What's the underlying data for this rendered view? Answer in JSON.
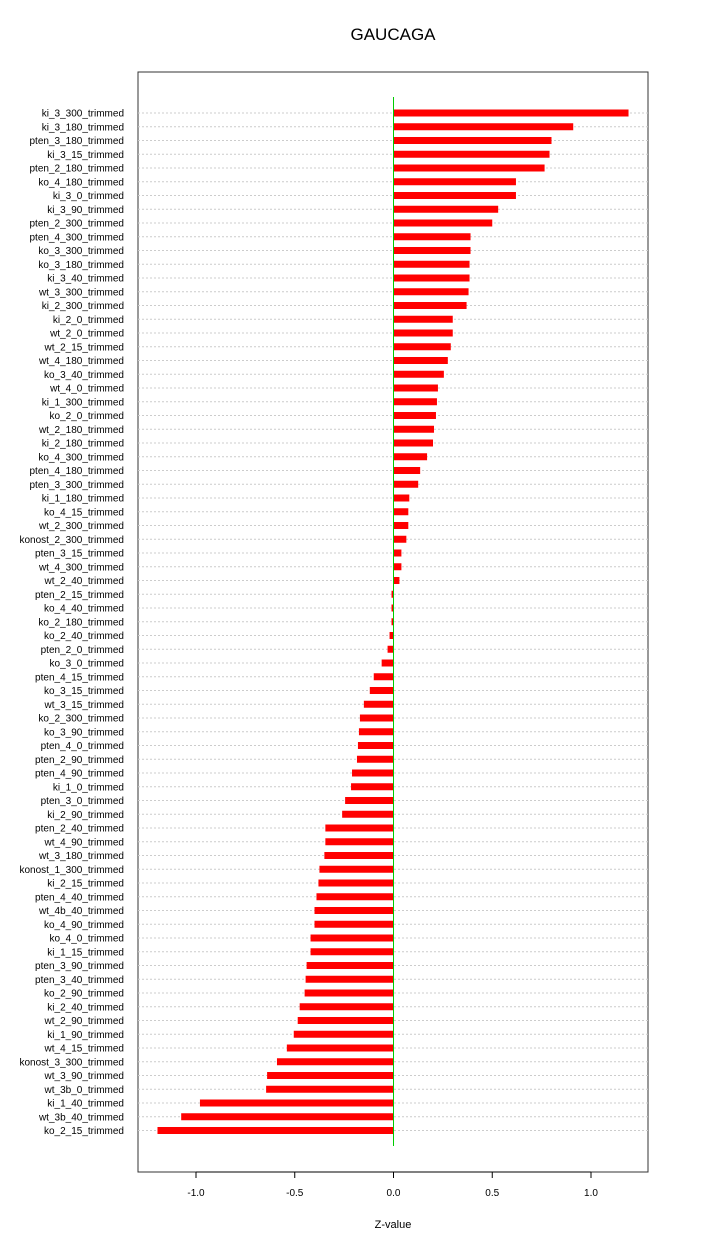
{
  "chart_data": {
    "type": "bar",
    "orientation": "horizontal",
    "title": "GAUCAGA",
    "xlabel": "Z-value",
    "ylabel": "",
    "xlim": [
      -1.3,
      1.3
    ],
    "xticks": [
      -1.0,
      -0.5,
      0.0,
      0.5,
      1.0
    ],
    "xtick_labels": [
      "-1.0",
      "-0.5",
      "0.0",
      "0.5",
      "1.0"
    ],
    "grid": "horizontal dotted",
    "bar_color": "#ff0000",
    "zero_line_color": "#00cc00",
    "categories": [
      "ki_3_300_trimmed",
      "ki_3_180_trimmed",
      "pten_3_180_trimmed",
      "ki_3_15_trimmed",
      "pten_2_180_trimmed",
      "ko_4_180_trimmed",
      "ki_3_0_trimmed",
      "ki_3_90_trimmed",
      "pten_2_300_trimmed",
      "pten_4_300_trimmed",
      "ko_3_300_trimmed",
      "ko_3_180_trimmed",
      "ki_3_40_trimmed",
      "wt_3_300_trimmed",
      "ki_2_300_trimmed",
      "ki_2_0_trimmed",
      "wt_2_0_trimmed",
      "wt_2_15_trimmed",
      "wt_4_180_trimmed",
      "ko_3_40_trimmed",
      "wt_4_0_trimmed",
      "ki_1_300_trimmed",
      "ko_2_0_trimmed",
      "wt_2_180_trimmed",
      "ki_2_180_trimmed",
      "ko_4_300_trimmed",
      "pten_4_180_trimmed",
      "pten_3_300_trimmed",
      "ki_1_180_trimmed",
      "ko_4_15_trimmed",
      "wt_2_300_trimmed",
      "konost_2_300_trimmed",
      "pten_3_15_trimmed",
      "wt_4_300_trimmed",
      "wt_2_40_trimmed",
      "pten_2_15_trimmed",
      "ko_4_40_trimmed",
      "ko_2_180_trimmed",
      "ko_2_40_trimmed",
      "pten_2_0_trimmed",
      "ko_3_0_trimmed",
      "pten_4_15_trimmed",
      "ko_3_15_trimmed",
      "wt_3_15_trimmed",
      "ko_2_300_trimmed",
      "ko_3_90_trimmed",
      "pten_4_0_trimmed",
      "pten_2_90_trimmed",
      "pten_4_90_trimmed",
      "ki_1_0_trimmed",
      "pten_3_0_trimmed",
      "ki_2_90_trimmed",
      "pten_2_40_trimmed",
      "wt_4_90_trimmed",
      "wt_3_180_trimmed",
      "konost_1_300_trimmed",
      "ki_2_15_trimmed",
      "pten_4_40_trimmed",
      "wt_4b_40_trimmed",
      "ko_4_90_trimmed",
      "ko_4_0_trimmed",
      "ki_1_15_trimmed",
      "pten_3_90_trimmed",
      "pten_3_40_trimmed",
      "ko_2_90_trimmed",
      "ki_2_40_trimmed",
      "wt_2_90_trimmed",
      "ki_1_90_trimmed",
      "wt_4_15_trimmed",
      "konost_3_300_trimmed",
      "wt_3_90_trimmed",
      "wt_3b_0_trimmed",
      "ki_1_40_trimmed",
      "wt_3b_40_trimmed",
      "ko_2_15_trimmed"
    ],
    "values": [
      1.19,
      0.91,
      0.8,
      0.79,
      0.765,
      0.62,
      0.62,
      0.53,
      0.5,
      0.39,
      0.39,
      0.385,
      0.385,
      0.38,
      0.37,
      0.3,
      0.3,
      0.29,
      0.275,
      0.255,
      0.225,
      0.22,
      0.215,
      0.205,
      0.2,
      0.17,
      0.135,
      0.125,
      0.08,
      0.075,
      0.075,
      0.065,
      0.04,
      0.04,
      0.03,
      -0.01,
      -0.01,
      -0.01,
      -0.02,
      -0.03,
      -0.06,
      -0.1,
      -0.12,
      -0.15,
      -0.17,
      -0.175,
      -0.18,
      -0.185,
      -0.21,
      -0.215,
      -0.245,
      -0.26,
      -0.345,
      -0.345,
      -0.35,
      -0.375,
      -0.38,
      -0.39,
      -0.4,
      -0.4,
      -0.42,
      -0.42,
      -0.44,
      -0.445,
      -0.45,
      -0.475,
      -0.485,
      -0.505,
      -0.54,
      -0.59,
      -0.64,
      -0.645,
      -0.98,
      -1.075,
      -1.195
    ]
  }
}
